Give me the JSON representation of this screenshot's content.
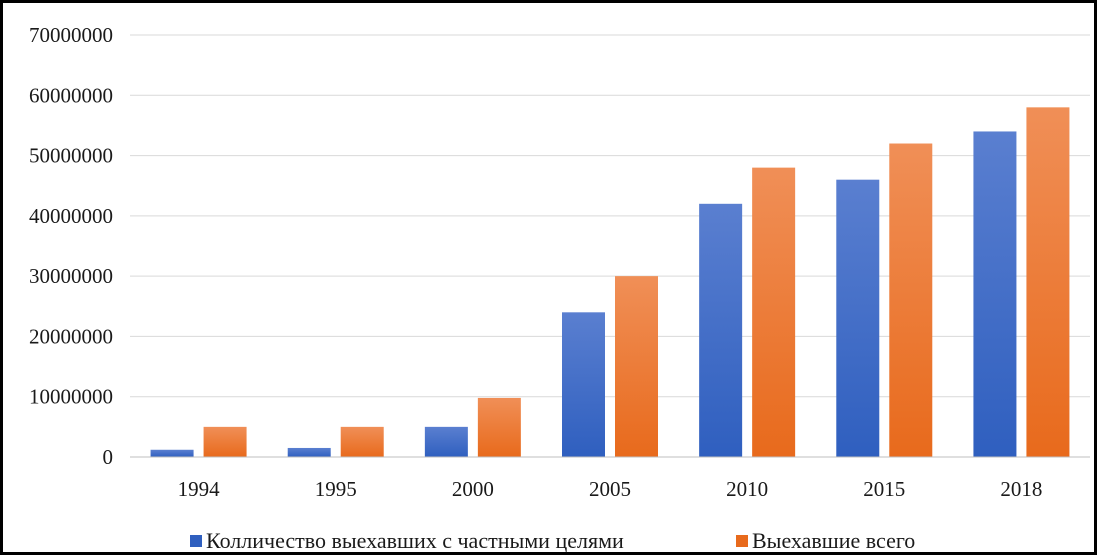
{
  "chart_data": {
    "type": "bar",
    "categories": [
      "1994",
      "1995",
      "2000",
      "2005",
      "2010",
      "2015",
      "2018"
    ],
    "series": [
      {
        "name": "Колличество выехавших с частными целями",
        "values": [
          1200000,
          1500000,
          5000000,
          24000000,
          42000000,
          46000000,
          54000000
        ],
        "color_top": "#5a7fd0",
        "color_bottom": "#2f5fbf"
      },
      {
        "name": "Выехавшие всего",
        "values": [
          5000000,
          5000000,
          9800000,
          30000000,
          48000000,
          52000000,
          58000000
        ],
        "color_top": "#f08f57",
        "color_bottom": "#e86a1c"
      }
    ],
    "ylim": [
      0,
      70000000
    ],
    "yticks": [
      "0",
      "10000000",
      "20000000",
      "30000000",
      "40000000",
      "50000000",
      "60000000",
      "70000000"
    ],
    "grid": true,
    "legend_position": "bottom"
  }
}
